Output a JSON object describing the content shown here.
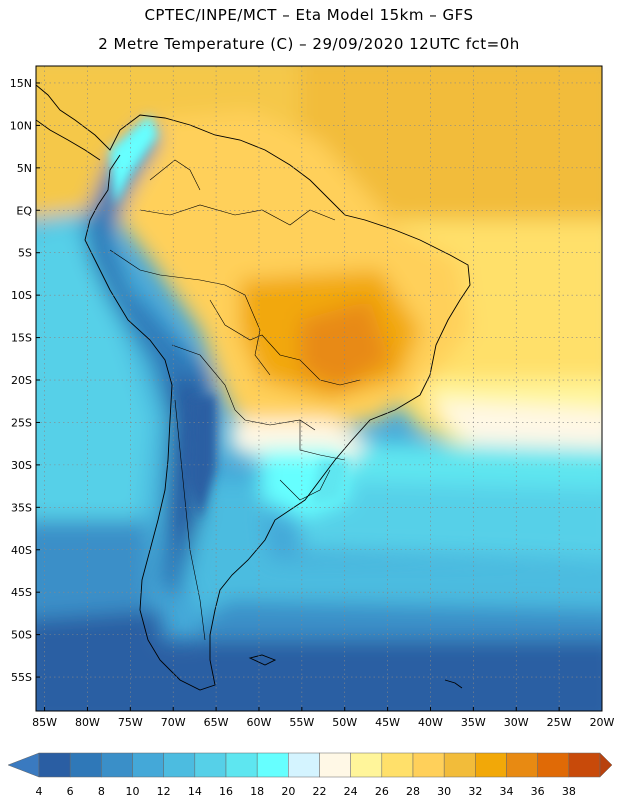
{
  "title_line1": "CPTEC/INPE/MCT –  Eta Model 15km – GFS",
  "title_line2": "2 Metre Temperature (C) – 29/09/2020 12UTC fct=0h",
  "map": {
    "region": "South America",
    "lon_range": [
      -86,
      -20
    ],
    "lat_range": [
      -59,
      17
    ],
    "lat_ticks": [
      {
        "value": 15,
        "label": "15N"
      },
      {
        "value": 10,
        "label": "10N"
      },
      {
        "value": 5,
        "label": "5N"
      },
      {
        "value": 0,
        "label": "EQ"
      },
      {
        "value": -5,
        "label": "5S"
      },
      {
        "value": -10,
        "label": "10S"
      },
      {
        "value": -15,
        "label": "15S"
      },
      {
        "value": -20,
        "label": "20S"
      },
      {
        "value": -25,
        "label": "25S"
      },
      {
        "value": -30,
        "label": "30S"
      },
      {
        "value": -35,
        "label": "35S"
      },
      {
        "value": -40,
        "label": "40S"
      },
      {
        "value": -45,
        "label": "45S"
      },
      {
        "value": -50,
        "label": "50S"
      },
      {
        "value": -55,
        "label": "55S"
      }
    ],
    "lon_ticks": [
      {
        "value": -85,
        "label": "85W"
      },
      {
        "value": -80,
        "label": "80W"
      },
      {
        "value": -75,
        "label": "75W"
      },
      {
        "value": -70,
        "label": "70W"
      },
      {
        "value": -65,
        "label": "65W"
      },
      {
        "value": -60,
        "label": "60W"
      },
      {
        "value": -55,
        "label": "55W"
      },
      {
        "value": -50,
        "label": "50W"
      },
      {
        "value": -45,
        "label": "45W"
      },
      {
        "value": -40,
        "label": "40W"
      },
      {
        "value": -35,
        "label": "35W"
      },
      {
        "value": -30,
        "label": "30W"
      },
      {
        "value": -25,
        "label": "25W"
      },
      {
        "value": -20,
        "label": "20W"
      }
    ],
    "grid": true
  },
  "colorbar": {
    "levels": [
      "4",
      "6",
      "8",
      "10",
      "12",
      "14",
      "16",
      "18",
      "20",
      "22",
      "24",
      "26",
      "28",
      "30",
      "32",
      "34",
      "36",
      "38"
    ],
    "colors": [
      "#2a5ea3",
      "#2f78b8",
      "#3a8fc8",
      "#44a8d8",
      "#4cbce0",
      "#56d0e8",
      "#5ee6f0",
      "#66ffff",
      "#d4f4ff",
      "#fff8e6",
      "#fff59a",
      "#ffe06a",
      "#ffd05a",
      "#f2bc3a",
      "#f2a808",
      "#e88a12",
      "#e06a06",
      "#c84a0a"
    ],
    "low_color": "#3a7ac0",
    "high_color": "#b8420e"
  }
}
